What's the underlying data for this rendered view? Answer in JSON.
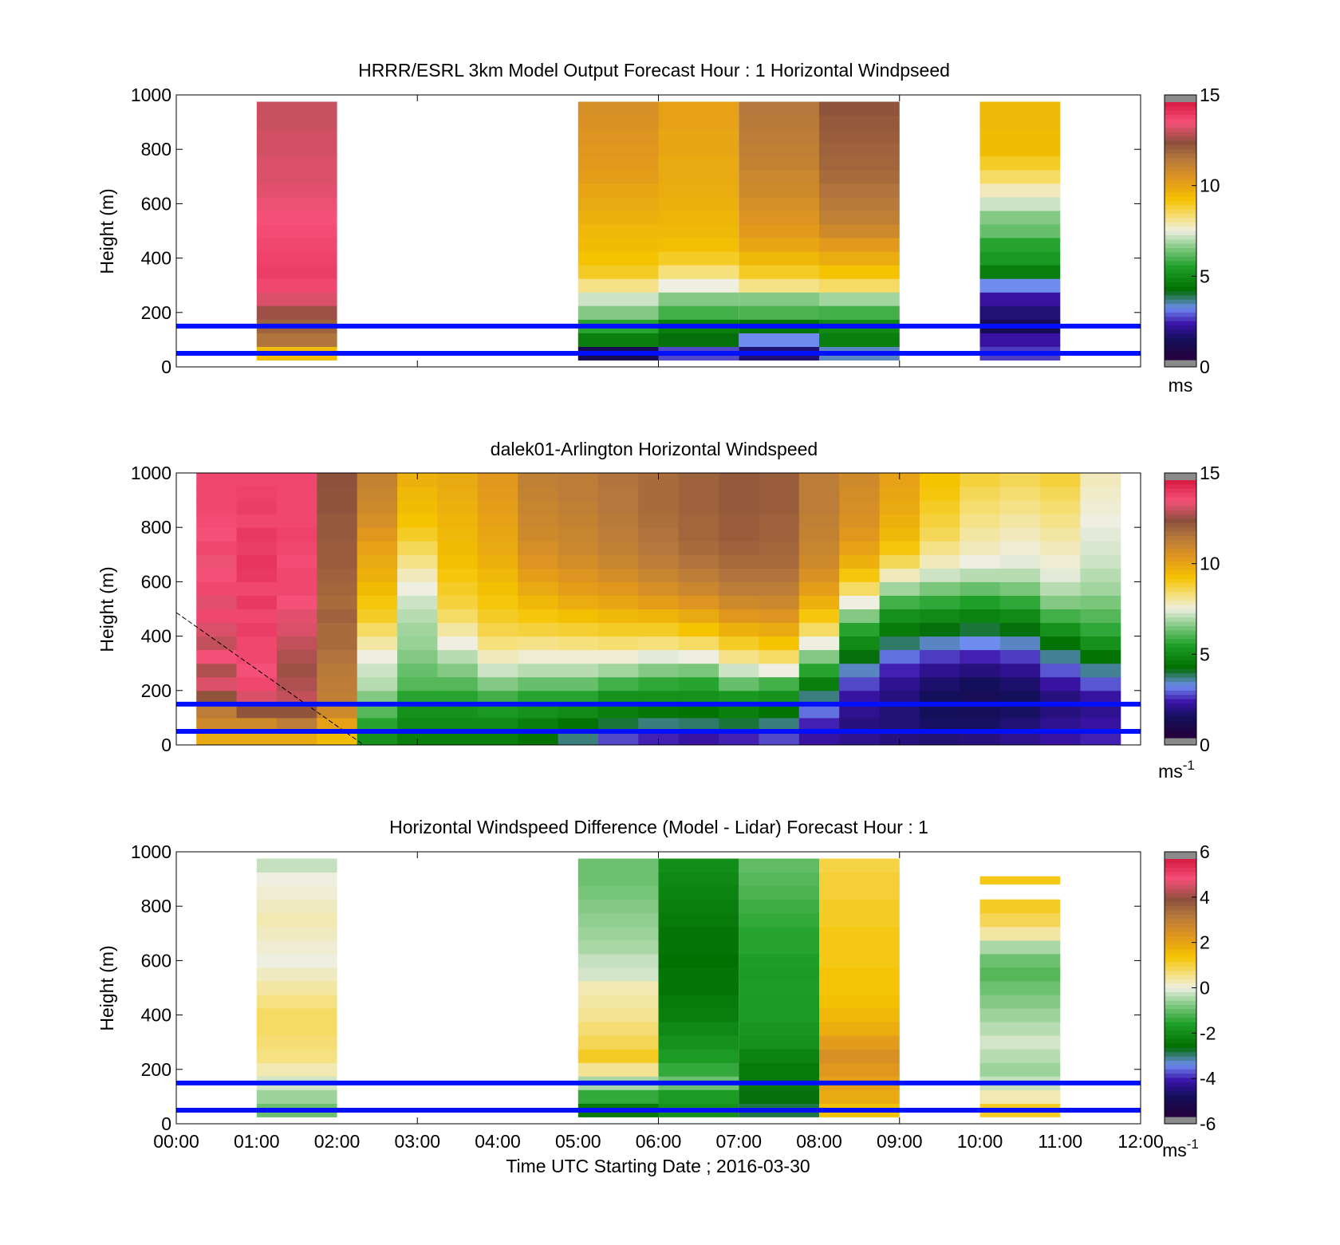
{
  "chart_data": [
    {
      "type": "heatmap",
      "title": "HRRR/ESRL 3km Model Output   Forecast Hour : 1 Horizontal Windpseed",
      "ylabel": "Height (m)",
      "xlabel": "",
      "xlim": [
        0,
        12
      ],
      "ylim": [
        0,
        1000
      ],
      "yticks": [
        "0",
        "200",
        "400",
        "600",
        "800",
        "1000"
      ],
      "colorbar": {
        "min": 0,
        "max": 15,
        "ticks": [
          "0",
          "5",
          "10",
          "15"
        ],
        "unit": "ms",
        "superscript": ""
      },
      "reference_lines_m": [
        50,
        150
      ],
      "heights_m": [
        50,
        100,
        150,
        200,
        250,
        300,
        350,
        400,
        450,
        500,
        550,
        600,
        650,
        700,
        750,
        800,
        850,
        900,
        950
      ],
      "columns": [
        {
          "start_hour": 1,
          "end_hour": 2,
          "values": [
            9.5,
            11.8,
            12.2,
            12.8,
            13.5,
            14.0,
            14.2,
            14.1,
            14.0,
            13.9,
            13.8,
            13.7,
            13.6,
            13.5,
            13.5,
            13.4,
            13.4,
            13.3,
            13.3
          ]
        },
        {
          "start_hour": 5,
          "end_hour": 6,
          "values": [
            1.0,
            4.5,
            5.5,
            6.5,
            7.2,
            8.2,
            9.0,
            9.3,
            9.5,
            9.6,
            9.8,
            10.0,
            10.1,
            10.3,
            10.4,
            10.5,
            10.6,
            10.7,
            10.8
          ]
        },
        {
          "start_hour": 6,
          "end_hour": 7,
          "values": [
            2.5,
            4.0,
            4.5,
            5.8,
            6.5,
            7.5,
            8.3,
            9.0,
            9.4,
            9.6,
            9.7,
            9.8,
            9.9,
            10.0,
            10.0,
            10.1,
            10.1,
            10.2,
            10.2
          ]
        },
        {
          "start_hour": 7,
          "end_hour": 8,
          "values": [
            1.5,
            3.0,
            4.2,
            5.9,
            6.5,
            8.2,
            9.0,
            9.6,
            10.1,
            10.4,
            10.6,
            10.8,
            11.0,
            11.1,
            11.3,
            11.4,
            11.5,
            11.6,
            11.7
          ]
        },
        {
          "start_hour": 8,
          "end_hour": 9,
          "values": [
            3.2,
            4.5,
            4.8,
            5.8,
            6.8,
            8.5,
            9.3,
            9.9,
            10.4,
            11.0,
            11.4,
            11.6,
            11.8,
            12.0,
            12.1,
            12.2,
            12.3,
            12.4,
            12.5
          ]
        },
        {
          "start_hour": 10,
          "end_hour": 11,
          "values": [
            2.4,
            2.0,
            1.0,
            1.5,
            2.0,
            3.0,
            4.5,
            5.2,
            5.5,
            6.2,
            6.5,
            7.2,
            7.8,
            8.5,
            9.0,
            9.5,
            9.5,
            9.6,
            9.6
          ]
        }
      ]
    },
    {
      "type": "heatmap",
      "title": "dalek01-Arlington  Horizontal Windspeed",
      "ylabel": "Height (m)",
      "xlabel": "",
      "xlim": [
        0,
        12
      ],
      "ylim": [
        0,
        1000
      ],
      "yticks": [
        "0",
        "200",
        "400",
        "600",
        "800",
        "1000"
      ],
      "colorbar": {
        "min": 0,
        "max": 15,
        "ticks": [
          "0",
          "5",
          "10",
          "15"
        ],
        "unit": "ms",
        "superscript": "-1"
      },
      "reference_lines_m": [
        50,
        150
      ],
      "heights_m": [
        25,
        75,
        125,
        175,
        225,
        275,
        325,
        375,
        425,
        475,
        525,
        575,
        625,
        675,
        725,
        775,
        825,
        875,
        925,
        975
      ],
      "profiles": [
        {
          "hour": 0.5,
          "values": [
            10.0,
            11.0,
            11.5,
            12.5,
            13.5,
            13.0,
            13.8,
            13.2,
            13.5,
            14.0,
            13.6,
            14.0,
            13.8,
            13.7,
            14.0,
            13.8,
            13.9,
            14.0,
            14.0,
            14.0
          ]
        },
        {
          "hour": 1.0,
          "values": [
            10.0,
            11.0,
            12.5,
            13.5,
            14.0,
            13.8,
            14.0,
            14.0,
            14.2,
            14.0,
            14.3,
            14.0,
            14.3,
            14.4,
            14.2,
            14.3,
            14.0,
            14.2,
            14.1,
            14.0
          ]
        },
        {
          "hour": 1.5,
          "values": [
            10.0,
            11.5,
            12.5,
            13.2,
            13.0,
            12.8,
            13.0,
            13.2,
            13.5,
            13.6,
            13.8,
            14.0,
            14.0,
            13.9,
            14.0,
            14.1,
            14.0,
            14.0,
            14.0,
            14.0
          ]
        },
        {
          "hour": 2.0,
          "values": [
            9.5,
            10.2,
            11.0,
            11.4,
            11.5,
            11.6,
            11.8,
            12.0,
            12.0,
            12.2,
            12.0,
            12.1,
            12.2,
            12.3,
            12.3,
            12.4,
            12.4,
            12.5,
            12.5,
            12.6
          ]
        },
        {
          "hour": 2.5,
          "values": [
            5.0,
            5.5,
            6.0,
            6.5,
            7.0,
            7.2,
            7.5,
            8.0,
            8.5,
            9.0,
            9.2,
            9.5,
            9.8,
            10.0,
            10.2,
            10.5,
            10.8,
            11.0,
            11.2,
            11.3
          ]
        },
        {
          "hour": 3.0,
          "values": [
            4.5,
            4.8,
            5.0,
            5.5,
            6.0,
            6.2,
            6.5,
            6.7,
            6.8,
            7.0,
            7.2,
            7.5,
            7.8,
            8.2,
            8.6,
            9.0,
            9.3,
            9.5,
            9.6,
            9.8
          ]
        },
        {
          "hour": 3.5,
          "values": [
            4.5,
            4.8,
            5.0,
            5.5,
            6.0,
            6.5,
            7.0,
            7.5,
            8.0,
            8.5,
            8.8,
            9.0,
            9.2,
            9.4,
            9.5,
            9.6,
            9.7,
            9.8,
            9.9,
            10.0
          ]
        },
        {
          "hour": 4.0,
          "values": [
            4.5,
            4.8,
            5.2,
            5.8,
            6.5,
            7.2,
            7.8,
            8.3,
            8.7,
            9.0,
            9.2,
            9.4,
            9.6,
            9.8,
            10.0,
            10.1,
            10.2,
            10.3,
            10.4,
            10.5
          ]
        },
        {
          "hour": 4.5,
          "values": [
            4.2,
            4.5,
            5.0,
            5.5,
            6.2,
            7.0,
            7.6,
            8.2,
            8.8,
            9.2,
            9.6,
            10.0,
            10.3,
            10.6,
            10.8,
            11.0,
            11.1,
            11.2,
            11.3,
            11.4
          ]
        },
        {
          "hour": 5.0,
          "values": [
            3.5,
            4.2,
            4.8,
            5.5,
            6.2,
            7.0,
            7.6,
            8.3,
            8.9,
            9.4,
            9.9,
            10.3,
            10.6,
            10.9,
            11.1,
            11.2,
            11.3,
            11.4,
            11.5,
            11.5
          ]
        },
        {
          "hour": 5.5,
          "values": [
            2.5,
            3.8,
            4.5,
            5.0,
            5.8,
            6.8,
            7.6,
            8.4,
            9.0,
            9.6,
            10.1,
            10.5,
            10.9,
            11.2,
            11.4,
            11.5,
            11.6,
            11.7,
            11.7,
            11.8
          ]
        },
        {
          "hour": 6.0,
          "values": [
            2.2,
            3.5,
            4.3,
            5.0,
            5.6,
            6.5,
            7.4,
            8.3,
            9.0,
            9.7,
            10.3,
            10.8,
            11.2,
            11.5,
            11.7,
            11.8,
            11.9,
            12.0,
            12.0,
            12.0
          ]
        },
        {
          "hour": 6.5,
          "values": [
            2.0,
            3.6,
            4.2,
            5.0,
            5.5,
            6.4,
            7.5,
            8.5,
            9.3,
            10.0,
            10.6,
            11.1,
            11.5,
            11.8,
            12.0,
            12.1,
            12.1,
            12.2,
            12.2,
            12.2
          ]
        },
        {
          "hour": 7.0,
          "values": [
            2.2,
            3.8,
            4.5,
            5.2,
            6.2,
            7.2,
            8.2,
            9.0,
            9.8,
            10.5,
            11.0,
            11.5,
            11.8,
            12.0,
            12.2,
            12.3,
            12.3,
            12.4,
            12.4,
            12.4
          ]
        },
        {
          "hour": 7.5,
          "values": [
            2.5,
            3.5,
            4.2,
            5.0,
            5.8,
            7.5,
            8.5,
            9.3,
            10.0,
            10.6,
            11.1,
            11.5,
            11.8,
            12.0,
            12.1,
            12.2,
            12.2,
            12.3,
            12.3,
            12.3
          ]
        },
        {
          "hour": 8.0,
          "values": [
            2.0,
            2.2,
            2.8,
            3.5,
            4.5,
            5.5,
            6.5,
            7.5,
            8.5,
            9.2,
            9.8,
            10.3,
            10.7,
            11.0,
            11.2,
            11.3,
            11.4,
            11.5,
            11.5,
            11.5
          ]
        },
        {
          "hour": 8.5,
          "values": [
            1.8,
            1.6,
            1.8,
            2.0,
            2.5,
            3.2,
            4.0,
            4.8,
            5.5,
            6.5,
            7.5,
            8.5,
            9.2,
            9.8,
            10.2,
            10.5,
            10.7,
            10.8,
            10.9,
            11.0
          ]
        },
        {
          "hour": 9.0,
          "values": [
            1.6,
            1.5,
            1.5,
            1.6,
            1.8,
            2.2,
            2.8,
            3.6,
            4.4,
            5.0,
            5.8,
            6.8,
            7.8,
            8.6,
            9.2,
            9.6,
            9.8,
            10.0,
            10.1,
            10.2
          ]
        },
        {
          "hour": 9.5,
          "values": [
            1.5,
            1.3,
            1.2,
            1.2,
            1.4,
            1.8,
            2.4,
            3.2,
            4.0,
            4.8,
            5.6,
            6.4,
            7.2,
            7.8,
            8.2,
            8.6,
            8.8,
            9.0,
            9.2,
            9.3
          ]
        },
        {
          "hour": 10.0,
          "values": [
            1.6,
            1.3,
            1.1,
            1.0,
            1.2,
            1.6,
            2.2,
            3.0,
            3.8,
            4.6,
            5.4,
            6.2,
            7.0,
            7.5,
            7.8,
            8.0,
            8.2,
            8.4,
            8.6,
            8.8
          ]
        },
        {
          "hour": 10.5,
          "values": [
            1.8,
            1.5,
            1.3,
            1.2,
            1.4,
            1.8,
            2.4,
            3.2,
            4.0,
            4.8,
            5.6,
            6.4,
            7.0,
            7.4,
            7.6,
            7.8,
            8.0,
            8.2,
            8.4,
            8.6
          ]
        },
        {
          "hour": 11.0,
          "values": [
            2.0,
            1.8,
            1.6,
            1.6,
            2.0,
            2.6,
            3.4,
            4.2,
            5.0,
            5.8,
            6.5,
            7.0,
            7.4,
            7.6,
            7.8,
            8.0,
            8.2,
            8.4,
            8.6,
            8.8
          ]
        },
        {
          "hour": 11.5,
          "values": [
            2.2,
            2.0,
            1.8,
            2.0,
            2.6,
            3.4,
            4.2,
            5.0,
            5.6,
            6.0,
            6.4,
            6.8,
            7.0,
            7.2,
            7.3,
            7.4,
            7.5,
            7.6,
            7.7,
            7.8
          ]
        }
      ]
    },
    {
      "type": "heatmap",
      "title": "Horizontal Windspeed Difference (Model - Lidar) Forecast Hour : 1",
      "ylabel": "Height (m)",
      "xlabel": "Time UTC  Starting Date ; 2016-03-30",
      "xlim": [
        0,
        12
      ],
      "ylim": [
        0,
        1000
      ],
      "yticks": [
        "0",
        "200",
        "400",
        "600",
        "800",
        "1000"
      ],
      "xticks": [
        "00:00",
        "01:00",
        "02:00",
        "03:00",
        "04:00",
        "05:00",
        "06:00",
        "07:00",
        "08:00",
        "09:00",
        "10:00",
        "11:00",
        "12:00"
      ],
      "colorbar": {
        "min": -6,
        "max": 6,
        "ticks": [
          "-6",
          "-4",
          "-2",
          "0",
          "2",
          "4",
          "6"
        ],
        "unit": "ms",
        "superscript": "-1"
      },
      "reference_lines_m": [
        50,
        150
      ],
      "heights_m": [
        50,
        100,
        150,
        200,
        250,
        300,
        350,
        400,
        450,
        500,
        550,
        600,
        650,
        700,
        750,
        800,
        850,
        900,
        950
      ],
      "columns": [
        {
          "start_hour": 1,
          "end_hour": 2,
          "values": [
            -1.0,
            -0.6,
            -0.2,
            0.3,
            0.6,
            0.7,
            0.8,
            0.8,
            0.6,
            0.4,
            0.2,
            0.0,
            0.1,
            0.2,
            0.3,
            0.2,
            0.1,
            0.0,
            -0.3
          ]
        },
        {
          "start_hour": 5,
          "end_hour": 6,
          "values": [
            -2.5,
            -1.5,
            -0.5,
            0.5,
            1.2,
            0.9,
            0.7,
            0.5,
            0.4,
            0.3,
            -0.2,
            -0.3,
            -0.5,
            -0.6,
            -0.7,
            -0.8,
            -0.9,
            -1.0,
            -1.0
          ]
        },
        {
          "start_hour": 6,
          "end_hour": 7,
          "values": [
            -2.0,
            -1.8,
            -1.0,
            -1.5,
            -1.8,
            -2.0,
            -2.2,
            -2.4,
            -2.5,
            -2.6,
            -2.6,
            -2.7,
            -2.6,
            -2.6,
            -2.5,
            -2.4,
            -2.3,
            -2.2,
            -2.1
          ]
        },
        {
          "start_hour": 7,
          "end_hour": 8,
          "values": [
            -3.0,
            -2.8,
            -2.5,
            -2.5,
            -2.3,
            -2.0,
            -1.9,
            -1.8,
            -1.8,
            -1.7,
            -1.8,
            -1.7,
            -1.6,
            -1.6,
            -1.5,
            -1.4,
            -1.3,
            -1.2,
            -1.1
          ]
        },
        {
          "start_hour": 8,
          "end_hour": 9,
          "values": [
            1.5,
            2.0,
            2.2,
            2.4,
            2.6,
            2.3,
            1.9,
            1.7,
            1.5,
            1.4,
            1.4,
            1.3,
            1.3,
            1.3,
            1.2,
            1.2,
            1.1,
            1.1,
            1.0
          ]
        },
        {
          "start_hour": 10,
          "end_hour": 11,
          "values": [
            1.2,
            0.3,
            -0.3,
            -0.6,
            -0.4,
            -0.2,
            -0.4,
            -0.6,
            -0.8,
            -1.0,
            -1.2,
            -1.0,
            -0.5,
            0.4,
            0.9,
            1.2,
            null,
            null,
            null
          ],
          "extra_band": {
            "from_m": 880,
            "to_m": 910,
            "value": 1.3
          }
        }
      ]
    }
  ]
}
